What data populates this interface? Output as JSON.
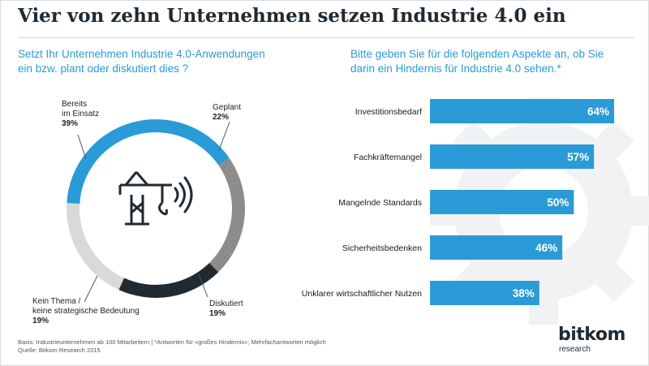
{
  "title": "Vier von zehn Unternehmen setzen Industrie 4.0 ein",
  "left_question": {
    "line1": "Setzt Ihr Unternehmen Industrie 4.0-Anwendungen",
    "line2": "ein bzw. plant oder diskutiert dies ?"
  },
  "right_question": {
    "line1": "Bitte geben Sie für die folgenden Aspekte an, ob Sie",
    "line2": "darin ein Hindernis für Industrie 4.0 sehen.*"
  },
  "donut_labels": [
    {
      "lines": [
        "Bereits",
        "im Einsatz"
      ],
      "value": "39%"
    },
    {
      "lines": [
        "Geplant"
      ],
      "value": "22%"
    },
    {
      "lines": [
        "Diskutiert"
      ],
      "value": "19%"
    },
    {
      "lines": [
        "Kein Thema /",
        "keine strategische Bedeutung"
      ],
      "value": "19%"
    }
  ],
  "footer": {
    "line1": "Basis: Industrieunternehmen ab 100 Mitarbeitern | *Antworten für »großes Hindernis«; Mehrfachantworten möglich",
    "line2": "Quelle: Bitkom Research 2015"
  },
  "logo": {
    "word": "bitkom",
    "sub": "research"
  },
  "colors": {
    "blue": "#2a9bd6",
    "gray": "#8c8c8c",
    "navy": "#1f2a33",
    "light_gray": "#d9d9d9",
    "gear": "#f0f2f4"
  },
  "icons": [
    "crane-icon",
    "wireless-signal-icon",
    "gear-icon"
  ],
  "chart_data": [
    {
      "type": "pie",
      "categories": [
        "Bereits im Einsatz",
        "Geplant",
        "Diskutiert",
        "Kein Thema / keine strategische Bedeutung"
      ],
      "values": [
        39,
        22,
        19,
        19
      ],
      "colors": [
        "#2a9bd6",
        "#8c8c8c",
        "#1f2a33",
        "#d9d9d9"
      ]
    },
    {
      "type": "bar",
      "orientation": "horizontal",
      "categories": [
        "Investitionsbedarf",
        "Fachkräftemangel",
        "Mangelnde Standards",
        "Sicherheitsbedenken",
        "Unklarer wirtschaftlicher Nutzen"
      ],
      "values": [
        64,
        57,
        50,
        46,
        38
      ],
      "value_labels": [
        "64%",
        "57%",
        "50%",
        "46%",
        "38%"
      ],
      "color": "#2a9bd6",
      "xlim": [
        0,
        64
      ]
    }
  ]
}
